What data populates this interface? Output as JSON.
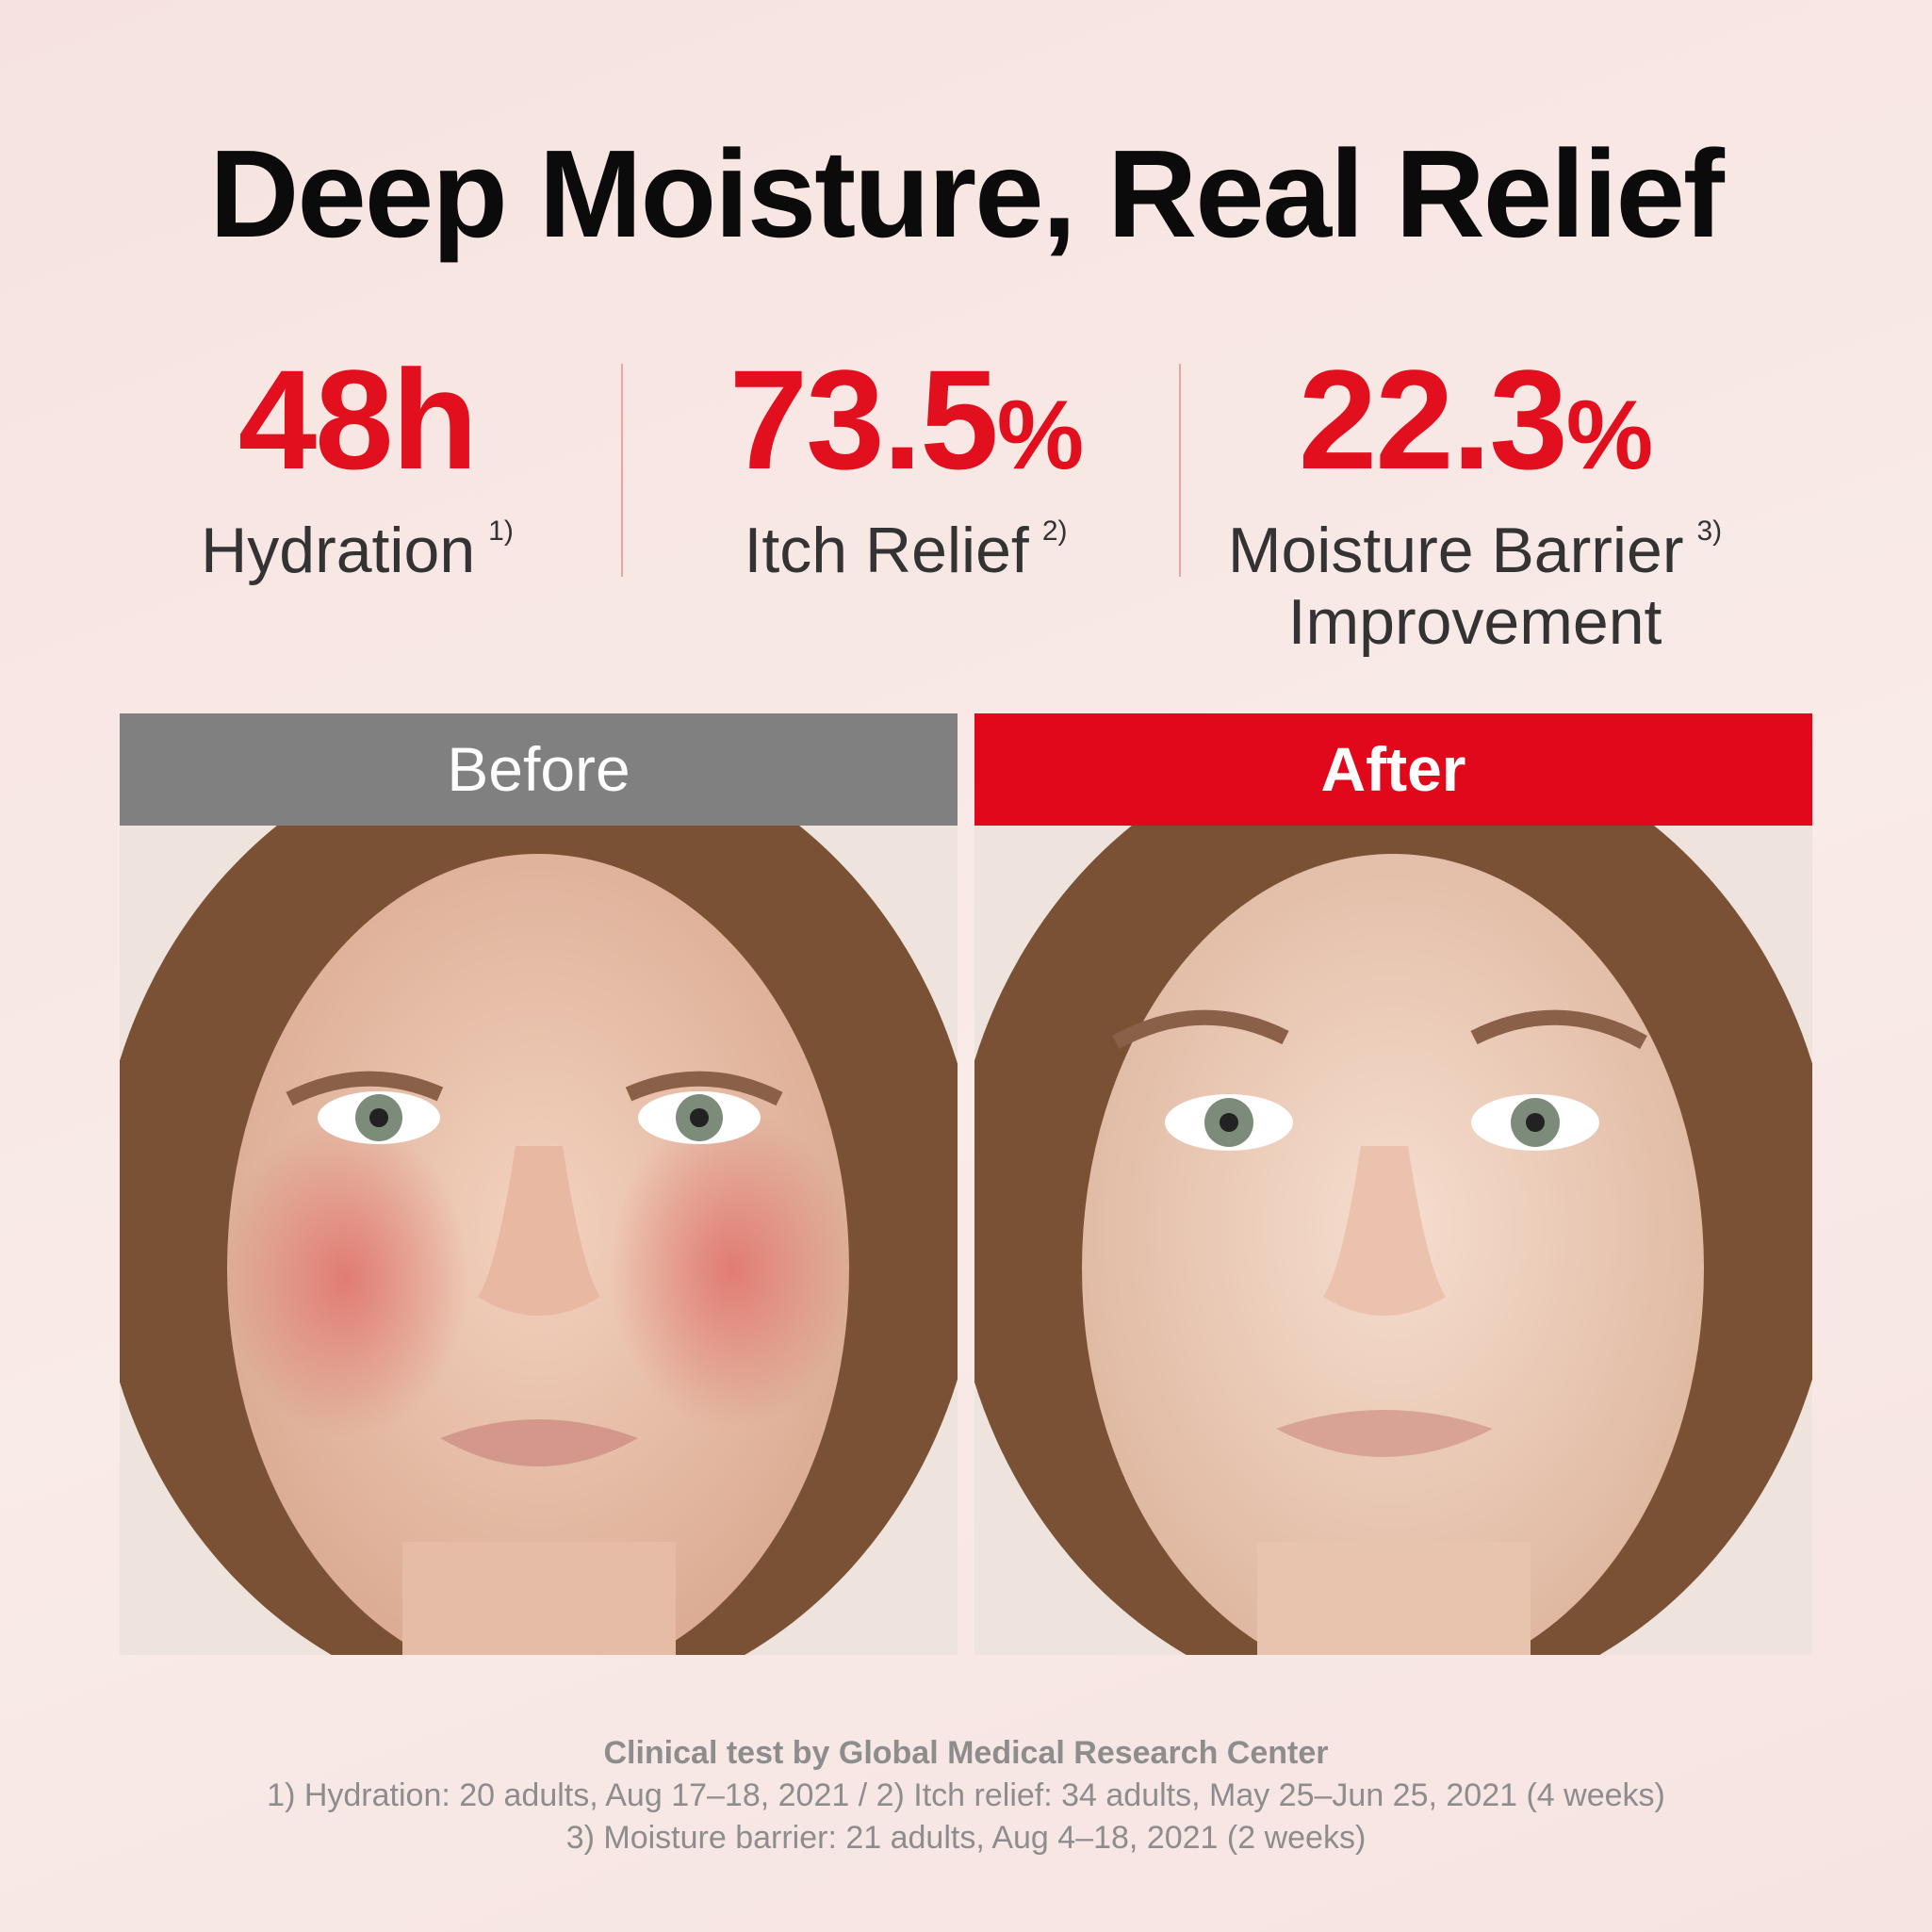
{
  "header": {
    "title": "Deep Moisture, Real Relief"
  },
  "stats": [
    {
      "value": "48h",
      "label": "Hydration",
      "note": "1)"
    },
    {
      "value": "73.5",
      "unit": "%",
      "label": "Itch Relief",
      "note": "2)"
    },
    {
      "value": "22.3",
      "unit": "%",
      "label": "Moisture Barrier",
      "label2": "Improvement",
      "note": "3)"
    }
  ],
  "comparison": {
    "before": "Before",
    "after": "After"
  },
  "footer": {
    "source": "Clinical test by Global Medical Research Center",
    "notes": [
      "1) Hydration: 20 adults, Aug 17–18, 2021 / 2) Itch relief: 34 adults, May 25–Jun 25, 2021 (4 weeks)",
      "3) Moisture barrier: 21 adults, Aug 4–18, 2021 (2 weeks)"
    ]
  }
}
